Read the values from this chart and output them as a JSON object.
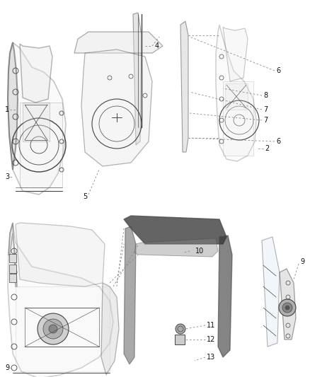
{
  "background_color": "#ffffff",
  "line_color": "#444444",
  "text_color": "#111111",
  "fig_width": 4.38,
  "fig_height": 5.33,
  "dpi": 100
}
